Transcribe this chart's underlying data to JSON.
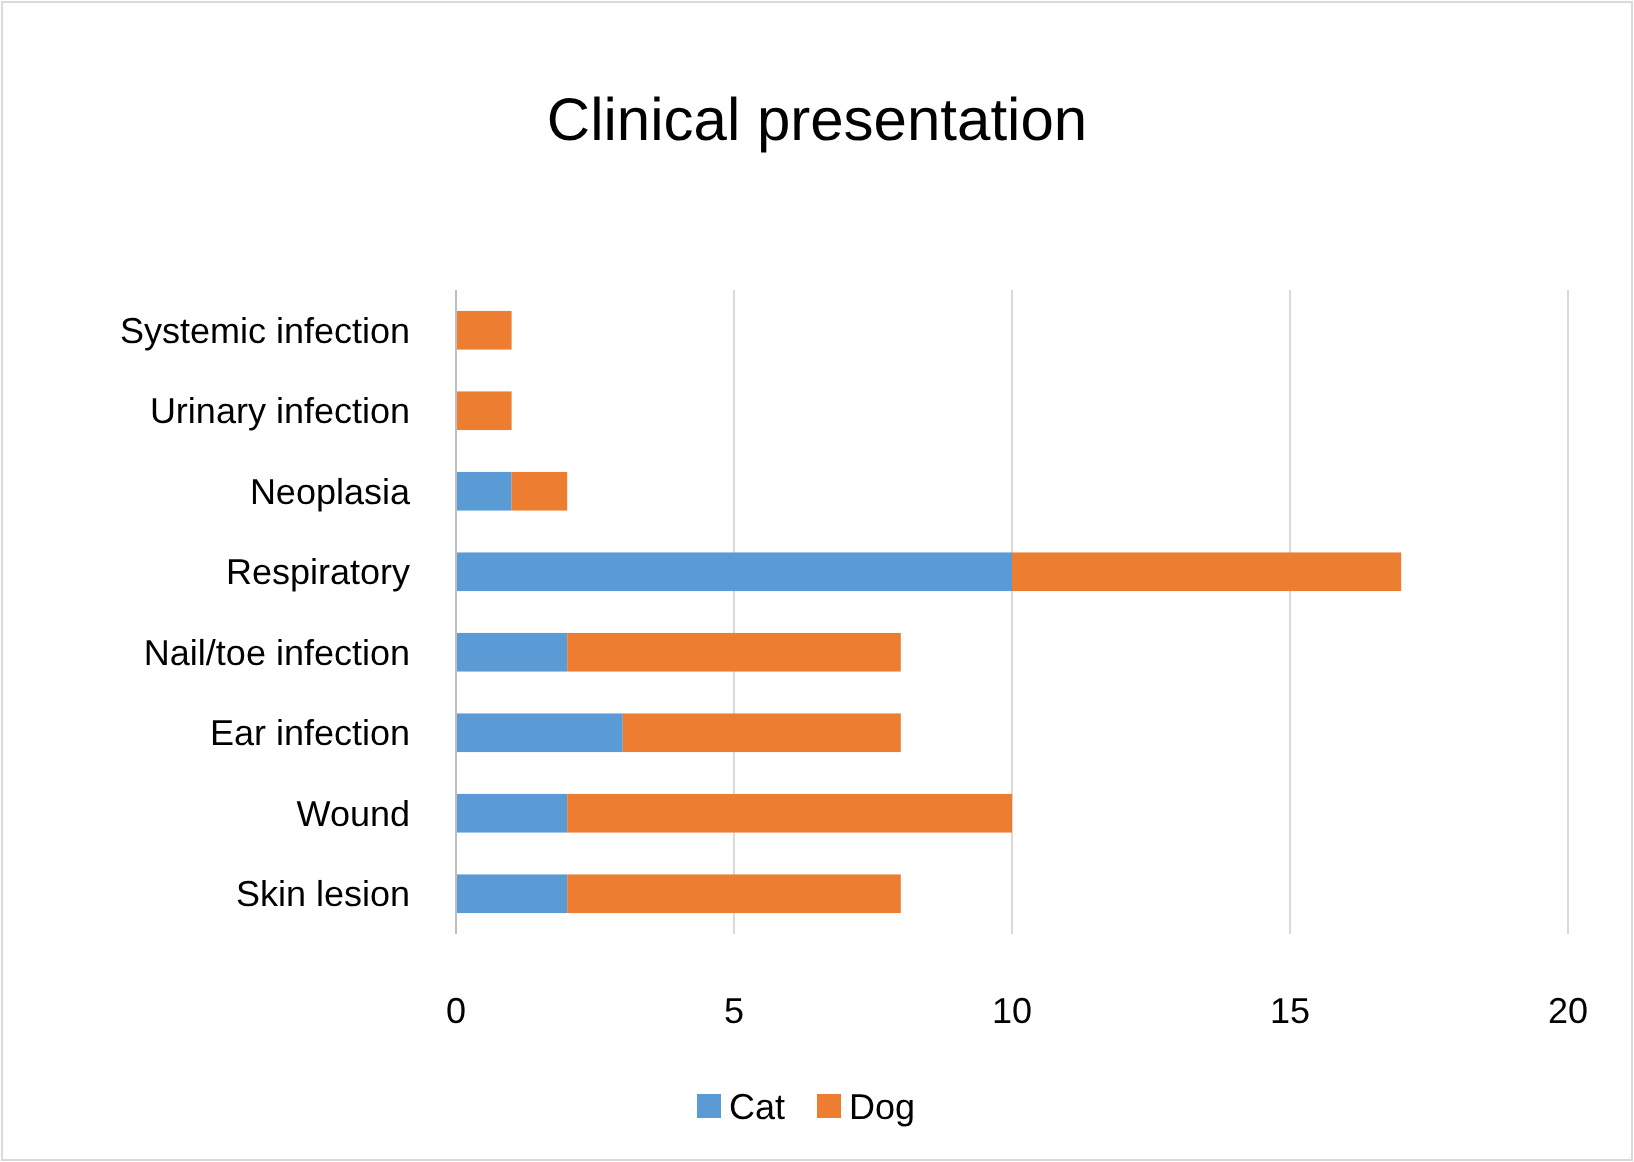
{
  "chart_data": {
    "type": "bar",
    "orientation": "horizontal",
    "stacked": true,
    "title": "Clinical presentation",
    "categories": [
      "Systemic infection",
      "Urinary infection",
      "Neoplasia",
      "Respiratory",
      "Nail/toe infection",
      "Ear infection",
      "Wound",
      "Skin lesion"
    ],
    "series": [
      {
        "name": "Cat",
        "color": "#5b9bd5",
        "values": [
          0,
          0,
          1,
          10,
          2,
          3,
          2,
          2
        ]
      },
      {
        "name": "Dog",
        "color": "#ed7d31",
        "values": [
          1,
          1,
          1,
          7,
          6,
          5,
          8,
          6
        ]
      }
    ],
    "xlim": [
      0,
      20
    ],
    "xticks": [
      0,
      5,
      10,
      15,
      20
    ],
    "grid": "x",
    "legend": "bottom"
  }
}
